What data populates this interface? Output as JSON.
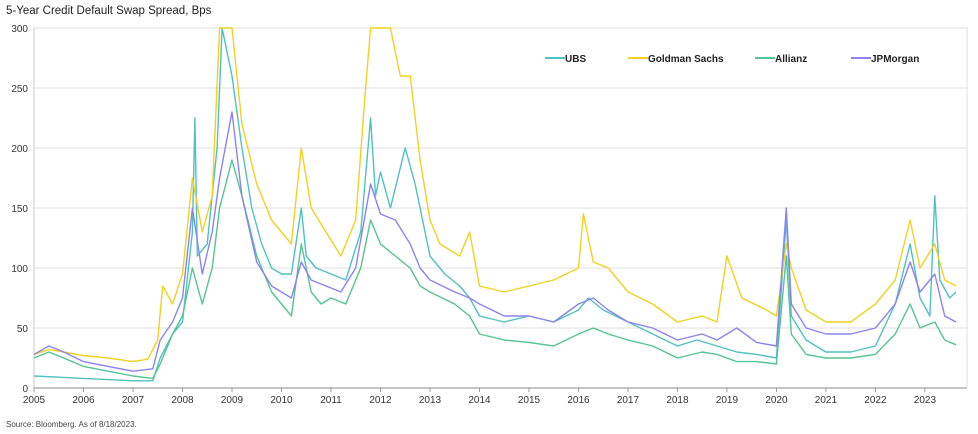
{
  "chart_data": {
    "type": "line",
    "title": "5-Year Credit Default Swap Spread, Bps",
    "xlabel": "",
    "ylabel": "",
    "xlim": [
      2005.0,
      2023.85
    ],
    "ylim": [
      0,
      300
    ],
    "y_ticks": [
      0,
      50,
      100,
      150,
      200,
      250,
      300
    ],
    "x_ticks": [
      2005,
      2006,
      2007,
      2008,
      2009,
      2010,
      2011,
      2012,
      2013,
      2014,
      2015,
      2016,
      2017,
      2018,
      2019,
      2020,
      2021,
      2022,
      2023
    ],
    "grid": "horizontal",
    "legend_position": "top-right",
    "series": [
      {
        "name": "UBS",
        "color": "#4fc1c0",
        "points": [
          [
            2005.0,
            10
          ],
          [
            2005.5,
            9
          ],
          [
            2006.0,
            8
          ],
          [
            2006.5,
            7
          ],
          [
            2007.0,
            6
          ],
          [
            2007.4,
            6
          ],
          [
            2007.55,
            25
          ],
          [
            2007.8,
            45
          ],
          [
            2008.0,
            55
          ],
          [
            2008.2,
            130
          ],
          [
            2008.25,
            225
          ],
          [
            2008.3,
            110
          ],
          [
            2008.5,
            120
          ],
          [
            2008.7,
            200
          ],
          [
            2008.8,
            300
          ],
          [
            2009.0,
            260
          ],
          [
            2009.2,
            200
          ],
          [
            2009.4,
            150
          ],
          [
            2009.6,
            120
          ],
          [
            2009.8,
            100
          ],
          [
            2010.0,
            95
          ],
          [
            2010.2,
            95
          ],
          [
            2010.4,
            150
          ],
          [
            2010.5,
            110
          ],
          [
            2010.7,
            100
          ],
          [
            2011.0,
            95
          ],
          [
            2011.3,
            90
          ],
          [
            2011.6,
            130
          ],
          [
            2011.8,
            225
          ],
          [
            2011.9,
            160
          ],
          [
            2012.0,
            180
          ],
          [
            2012.2,
            150
          ],
          [
            2012.5,
            200
          ],
          [
            2012.7,
            170
          ],
          [
            2013.0,
            110
          ],
          [
            2013.3,
            95
          ],
          [
            2013.6,
            85
          ],
          [
            2013.8,
            75
          ],
          [
            2014.0,
            60
          ],
          [
            2014.5,
            55
          ],
          [
            2015.0,
            60
          ],
          [
            2015.5,
            55
          ],
          [
            2016.0,
            65
          ],
          [
            2016.2,
            75
          ],
          [
            2016.5,
            65
          ],
          [
            2017.0,
            55
          ],
          [
            2017.5,
            45
          ],
          [
            2018.0,
            35
          ],
          [
            2018.4,
            40
          ],
          [
            2018.8,
            35
          ],
          [
            2019.2,
            30
          ],
          [
            2019.6,
            28
          ],
          [
            2020.0,
            25
          ],
          [
            2020.2,
            140
          ],
          [
            2020.3,
            60
          ],
          [
            2020.6,
            40
          ],
          [
            2021.0,
            30
          ],
          [
            2021.5,
            30
          ],
          [
            2022.0,
            35
          ],
          [
            2022.4,
            70
          ],
          [
            2022.7,
            120
          ],
          [
            2022.9,
            75
          ],
          [
            2023.1,
            60
          ],
          [
            2023.2,
            160
          ],
          [
            2023.3,
            90
          ],
          [
            2023.5,
            75
          ],
          [
            2023.63,
            80
          ]
        ]
      },
      {
        "name": "Goldman Sachs",
        "color": "#f2d11e",
        "points": [
          [
            2005.0,
            28
          ],
          [
            2005.3,
            32
          ],
          [
            2005.6,
            30
          ],
          [
            2006.0,
            27
          ],
          [
            2006.5,
            25
          ],
          [
            2007.0,
            22
          ],
          [
            2007.3,
            24
          ],
          [
            2007.5,
            40
          ],
          [
            2007.6,
            85
          ],
          [
            2007.8,
            70
          ],
          [
            2008.0,
            95
          ],
          [
            2008.2,
            175
          ],
          [
            2008.4,
            130
          ],
          [
            2008.6,
            160
          ],
          [
            2008.75,
            300
          ],
          [
            2009.0,
            300
          ],
          [
            2009.2,
            220
          ],
          [
            2009.5,
            170
          ],
          [
            2009.8,
            140
          ],
          [
            2010.0,
            130
          ],
          [
            2010.2,
            120
          ],
          [
            2010.4,
            200
          ],
          [
            2010.6,
            150
          ],
          [
            2010.9,
            130
          ],
          [
            2011.2,
            110
          ],
          [
            2011.5,
            140
          ],
          [
            2011.7,
            250
          ],
          [
            2011.8,
            300
          ],
          [
            2012.2,
            300
          ],
          [
            2012.4,
            260
          ],
          [
            2012.6,
            260
          ],
          [
            2012.8,
            190
          ],
          [
            2013.0,
            140
          ],
          [
            2013.2,
            120
          ],
          [
            2013.6,
            110
          ],
          [
            2013.8,
            130
          ],
          [
            2014.0,
            85
          ],
          [
            2014.5,
            80
          ],
          [
            2015.0,
            85
          ],
          [
            2015.5,
            90
          ],
          [
            2016.0,
            100
          ],
          [
            2016.1,
            145
          ],
          [
            2016.3,
            105
          ],
          [
            2016.6,
            100
          ],
          [
            2017.0,
            80
          ],
          [
            2017.5,
            70
          ],
          [
            2018.0,
            55
          ],
          [
            2018.5,
            60
          ],
          [
            2018.8,
            55
          ],
          [
            2019.0,
            110
          ],
          [
            2019.3,
            75
          ],
          [
            2019.8,
            65
          ],
          [
            2020.0,
            60
          ],
          [
            2020.2,
            120
          ],
          [
            2020.3,
            100
          ],
          [
            2020.6,
            65
          ],
          [
            2021.0,
            55
          ],
          [
            2021.5,
            55
          ],
          [
            2022.0,
            70
          ],
          [
            2022.4,
            90
          ],
          [
            2022.7,
            140
          ],
          [
            2022.9,
            100
          ],
          [
            2023.2,
            120
          ],
          [
            2023.4,
            90
          ],
          [
            2023.63,
            85
          ]
        ]
      },
      {
        "name": "Allianz",
        "color": "#53c493",
        "points": [
          [
            2005.0,
            25
          ],
          [
            2005.3,
            30
          ],
          [
            2005.6,
            25
          ],
          [
            2006.0,
            18
          ],
          [
            2006.5,
            14
          ],
          [
            2007.0,
            10
          ],
          [
            2007.4,
            8
          ],
          [
            2007.55,
            20
          ],
          [
            2007.8,
            45
          ],
          [
            2008.0,
            60
          ],
          [
            2008.2,
            100
          ],
          [
            2008.4,
            70
          ],
          [
            2008.6,
            100
          ],
          [
            2008.75,
            150
          ],
          [
            2009.0,
            190
          ],
          [
            2009.2,
            160
          ],
          [
            2009.5,
            110
          ],
          [
            2009.8,
            80
          ],
          [
            2010.0,
            70
          ],
          [
            2010.2,
            60
          ],
          [
            2010.4,
            120
          ],
          [
            2010.6,
            80
          ],
          [
            2010.8,
            70
          ],
          [
            2011.0,
            75
          ],
          [
            2011.3,
            70
          ],
          [
            2011.6,
            100
          ],
          [
            2011.8,
            140
          ],
          [
            2012.0,
            120
          ],
          [
            2012.3,
            110
          ],
          [
            2012.6,
            100
          ],
          [
            2012.8,
            85
          ],
          [
            2013.0,
            80
          ],
          [
            2013.5,
            70
          ],
          [
            2013.8,
            60
          ],
          [
            2014.0,
            45
          ],
          [
            2014.5,
            40
          ],
          [
            2015.0,
            38
          ],
          [
            2015.5,
            35
          ],
          [
            2016.0,
            45
          ],
          [
            2016.3,
            50
          ],
          [
            2016.6,
            45
          ],
          [
            2017.0,
            40
          ],
          [
            2017.5,
            35
          ],
          [
            2018.0,
            25
          ],
          [
            2018.5,
            30
          ],
          [
            2018.8,
            28
          ],
          [
            2019.2,
            22
          ],
          [
            2019.6,
            22
          ],
          [
            2020.0,
            20
          ],
          [
            2020.2,
            110
          ],
          [
            2020.3,
            45
          ],
          [
            2020.6,
            28
          ],
          [
            2021.0,
            25
          ],
          [
            2021.5,
            25
          ],
          [
            2022.0,
            28
          ],
          [
            2022.4,
            45
          ],
          [
            2022.7,
            70
          ],
          [
            2022.9,
            50
          ],
          [
            2023.2,
            55
          ],
          [
            2023.4,
            40
          ],
          [
            2023.63,
            36
          ]
        ]
      },
      {
        "name": "JPMorgan",
        "color": "#8b83ef",
        "points": [
          [
            2005.0,
            28
          ],
          [
            2005.3,
            35
          ],
          [
            2005.6,
            30
          ],
          [
            2006.0,
            22
          ],
          [
            2006.5,
            18
          ],
          [
            2007.0,
            14
          ],
          [
            2007.4,
            16
          ],
          [
            2007.55,
            40
          ],
          [
            2007.8,
            55
          ],
          [
            2008.0,
            75
          ],
          [
            2008.2,
            150
          ],
          [
            2008.4,
            95
          ],
          [
            2008.6,
            130
          ],
          [
            2008.75,
            175
          ],
          [
            2009.0,
            230
          ],
          [
            2009.2,
            160
          ],
          [
            2009.5,
            105
          ],
          [
            2009.8,
            85
          ],
          [
            2010.0,
            80
          ],
          [
            2010.2,
            75
          ],
          [
            2010.4,
            105
          ],
          [
            2010.6,
            90
          ],
          [
            2010.9,
            85
          ],
          [
            2011.2,
            80
          ],
          [
            2011.5,
            100
          ],
          [
            2011.8,
            170
          ],
          [
            2012.0,
            145
          ],
          [
            2012.3,
            140
          ],
          [
            2012.6,
            120
          ],
          [
            2012.8,
            100
          ],
          [
            2013.0,
            90
          ],
          [
            2013.5,
            80
          ],
          [
            2013.8,
            75
          ],
          [
            2014.0,
            70
          ],
          [
            2014.5,
            60
          ],
          [
            2015.0,
            60
          ],
          [
            2015.5,
            55
          ],
          [
            2016.0,
            70
          ],
          [
            2016.3,
            75
          ],
          [
            2016.6,
            65
          ],
          [
            2017.0,
            55
          ],
          [
            2017.5,
            50
          ],
          [
            2018.0,
            40
          ],
          [
            2018.5,
            45
          ],
          [
            2018.8,
            40
          ],
          [
            2019.2,
            50
          ],
          [
            2019.6,
            38
          ],
          [
            2020.0,
            35
          ],
          [
            2020.2,
            150
          ],
          [
            2020.3,
            70
          ],
          [
            2020.6,
            50
          ],
          [
            2021.0,
            45
          ],
          [
            2021.5,
            45
          ],
          [
            2022.0,
            50
          ],
          [
            2022.4,
            70
          ],
          [
            2022.7,
            105
          ],
          [
            2022.9,
            80
          ],
          [
            2023.2,
            95
          ],
          [
            2023.4,
            60
          ],
          [
            2023.63,
            55
          ]
        ]
      }
    ],
    "legend": [
      "UBS",
      "Goldman Sachs",
      "Allianz",
      "JPMorgan"
    ]
  },
  "source_note": "Source: Bloomberg. As of 8/18/2023."
}
